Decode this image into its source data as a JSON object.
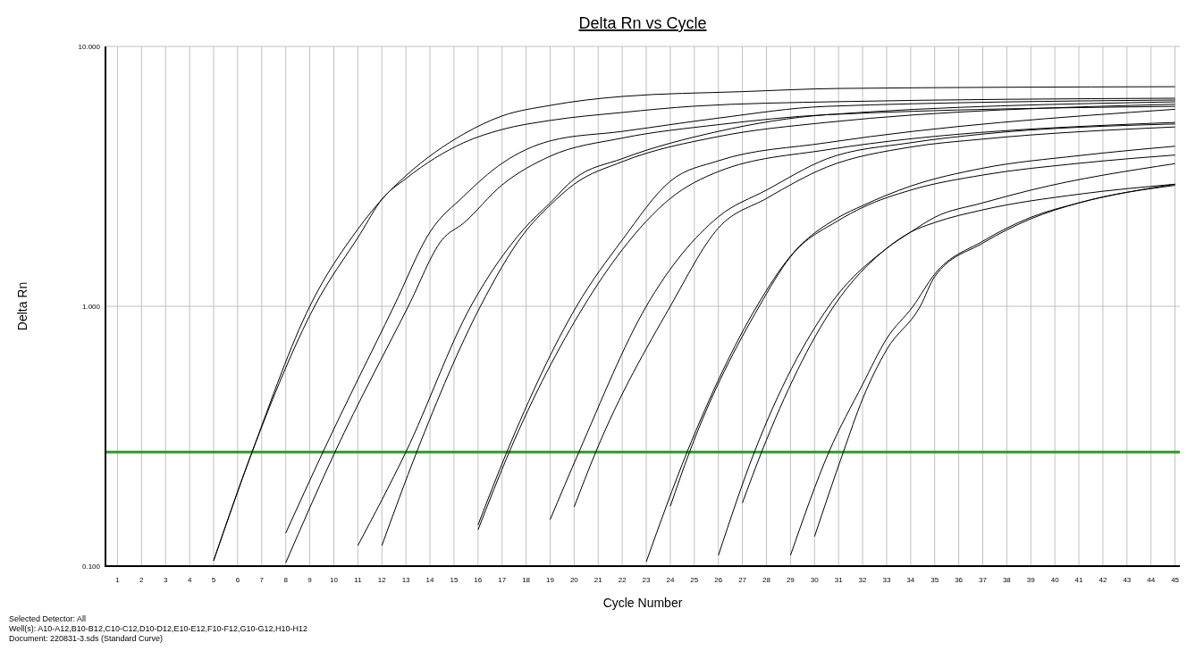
{
  "chart_data": {
    "type": "line",
    "title": "Delta Rn vs Cycle",
    "xlabel": "Cycle Number",
    "ylabel": "Delta Rn",
    "annotations": [
      "Selected Detector: All",
      "Well(s): A10-A12,B10-B12,C10-C12,D10-D12,E10-E12,F10-F12,G10-G12,H10-H12",
      "Document: 220831-3.sds (Standard Curve)"
    ],
    "log": "y",
    "grid": true,
    "marker": "none",
    "line_style": "solid",
    "xlim": [
      0.5,
      45.2
    ],
    "xticks": [
      1,
      2,
      3,
      4,
      5,
      6,
      7,
      8,
      9,
      10,
      11,
      12,
      13,
      14,
      15,
      16,
      17,
      18,
      19,
      20,
      21,
      22,
      23,
      24,
      25,
      26,
      27,
      28,
      29,
      30,
      31,
      32,
      33,
      34,
      35,
      36,
      37,
      38,
      39,
      40,
      41,
      42,
      43,
      44,
      45
    ],
    "ylim": [
      0.1,
      10
    ],
    "yticks": [
      {
        "value": 0.1,
        "label": "0.100"
      },
      {
        "value": 1,
        "label": "1.000"
      },
      {
        "value": 10,
        "label": "10.000"
      }
    ],
    "ref_lines": [
      {
        "axis": "y",
        "value": 0.275,
        "color": "#2e9a2e"
      }
    ],
    "series": [
      {
        "color": "#000000",
        "x": [
          5,
          6.6,
          9,
          11,
          12,
          13,
          15.4,
          17,
          19,
          22,
          27,
          31,
          45
        ],
        "values": [
          0.105,
          0.275,
          1.0,
          1.98,
          2.58,
          3.18,
          4.6,
          5.4,
          5.93,
          6.42,
          6.7,
          6.89,
          7.0
        ]
      },
      {
        "color": "#000000",
        "x": [
          5,
          6.6,
          9.2,
          11.1,
          12,
          13,
          15.4,
          17,
          19,
          22,
          25,
          31,
          45
        ],
        "values": [
          0.105,
          0.275,
          1.0,
          1.9,
          2.58,
          3.1,
          4.26,
          4.79,
          5.19,
          5.57,
          5.89,
          6.13,
          6.32
        ]
      },
      {
        "color": "#000000",
        "x": [
          8,
          9.55,
          12.5,
          14,
          15.4,
          17,
          19,
          22,
          26,
          30.5,
          45
        ],
        "values": [
          0.134,
          0.275,
          1.0,
          1.93,
          2.65,
          3.55,
          4.33,
          4.71,
          5.3,
          5.88,
          6.22
        ]
      },
      {
        "color": "#000000",
        "x": [
          8,
          10.05,
          13.1,
          14.5,
          15.4,
          17,
          19,
          22,
          26,
          30.5,
          45
        ],
        "values": [
          0.103,
          0.275,
          1.0,
          1.8,
          2.09,
          2.93,
          3.78,
          4.44,
          5.0,
          5.46,
          5.88
        ]
      },
      {
        "color": "#000000",
        "x": [
          11,
          13,
          15.7,
          17.9,
          19,
          20,
          22,
          26,
          30.5,
          45
        ],
        "values": [
          0.12,
          0.275,
          1.0,
          1.98,
          2.5,
          3.09,
          3.7,
          4.71,
          5.46,
          6.12
        ]
      },
      {
        "color": "#000000",
        "x": [
          12,
          13.45,
          16.1,
          17.9,
          19,
          20,
          22,
          26,
          30.5,
          45
        ],
        "values": [
          0.12,
          0.275,
          1.0,
          1.9,
          2.45,
          2.95,
          3.6,
          4.5,
          5.1,
          5.99
        ]
      },
      {
        "color": "#000000",
        "x": [
          16,
          17.2,
          20.1,
          22,
          24,
          26,
          30.5,
          45
        ],
        "values": [
          0.144,
          0.275,
          1.0,
          1.8,
          3.03,
          3.63,
          4.26,
          5.73
        ]
      },
      {
        "color": "#000000",
        "x": [
          16,
          17.3,
          20.4,
          22,
          24,
          26,
          30.5,
          45
        ],
        "values": [
          0.138,
          0.275,
          1.0,
          1.65,
          2.6,
          3.3,
          4.0,
          5.1
        ]
      },
      {
        "color": "#000000",
        "x": [
          19,
          20.2,
          23,
          26,
          28,
          30.5,
          34,
          37,
          45
        ],
        "values": [
          0.151,
          0.275,
          1.0,
          2.21,
          2.8,
          3.69,
          4.26,
          4.6,
          5.03
        ]
      },
      {
        "color": "#000000",
        "x": [
          20,
          20.9,
          24,
          26,
          28,
          30.5,
          34,
          37,
          45
        ],
        "values": [
          0.169,
          0.275,
          1.0,
          2.0,
          2.6,
          3.43,
          4.1,
          4.4,
          4.9
        ]
      },
      {
        "color": "#000000",
        "x": [
          23,
          24.7,
          27.6,
          29,
          31,
          32,
          34,
          37,
          41,
          45
        ],
        "values": [
          0.104,
          0.275,
          1.0,
          1.56,
          2.2,
          2.44,
          2.9,
          3.4,
          3.8,
          4.13
        ]
      },
      {
        "color": "#000000",
        "x": [
          24,
          24.8,
          27.7,
          29,
          31,
          32,
          34,
          37,
          41,
          45
        ],
        "values": [
          0.17,
          0.275,
          1.0,
          1.55,
          2.14,
          2.4,
          2.8,
          3.2,
          3.55,
          3.82
        ]
      },
      {
        "color": "#000000",
        "x": [
          26,
          27.5,
          30.6,
          33,
          34,
          35,
          37,
          39,
          45
        ],
        "values": [
          0.11,
          0.275,
          1.0,
          1.67,
          1.93,
          2.2,
          2.5,
          2.8,
          3.54
        ]
      },
      {
        "color": "#000000",
        "x": [
          27,
          27.8,
          30.8,
          33,
          34,
          35,
          37,
          41,
          45
        ],
        "values": [
          0.175,
          0.275,
          1.0,
          1.67,
          1.93,
          2.1,
          2.35,
          2.7,
          2.95
        ]
      },
      {
        "color": "#000000",
        "x": [
          29,
          30.6,
          32,
          33,
          34.1,
          35,
          37,
          39,
          41,
          45
        ],
        "values": [
          0.11,
          0.275,
          0.5,
          0.75,
          1.0,
          1.33,
          1.78,
          2.2,
          2.5,
          2.95
        ]
      },
      {
        "color": "#000000",
        "x": [
          30,
          31.2,
          32,
          33,
          34.4,
          35,
          37,
          39,
          41,
          45
        ],
        "values": [
          0.13,
          0.275,
          0.44,
          0.68,
          1.0,
          1.3,
          1.75,
          2.17,
          2.5,
          2.92
        ]
      }
    ]
  }
}
